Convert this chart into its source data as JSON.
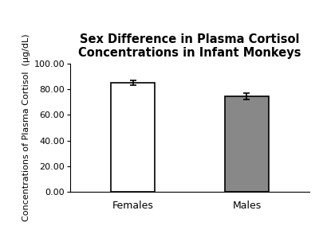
{
  "categories": [
    "Females",
    "Males"
  ],
  "values": [
    85.0,
    74.5
  ],
  "errors": [
    2.0,
    2.5
  ],
  "bar_colors": [
    "#ffffff",
    "#888888"
  ],
  "bar_edgecolors": [
    "#000000",
    "#000000"
  ],
  "title_line1": "Sex Difference in Plasma Cortisol",
  "title_line2": "Concentrations in Infant Monkeys",
  "ylabel": "Concentrations of Plasma Cortisol  (µg/dL)",
  "ylim": [
    0,
    100
  ],
  "yticks": [
    0.0,
    20.0,
    40.0,
    60.0,
    80.0,
    100.0
  ],
  "ytick_labels": [
    "0.00",
    "20.00",
    "40.00",
    "60.00",
    "80.00",
    "100.00"
  ],
  "background_color": "#ffffff",
  "title_fontsize": 10.5,
  "ylabel_fontsize": 8,
  "tick_fontsize": 8,
  "bar_width": 0.38,
  "capsize": 3
}
